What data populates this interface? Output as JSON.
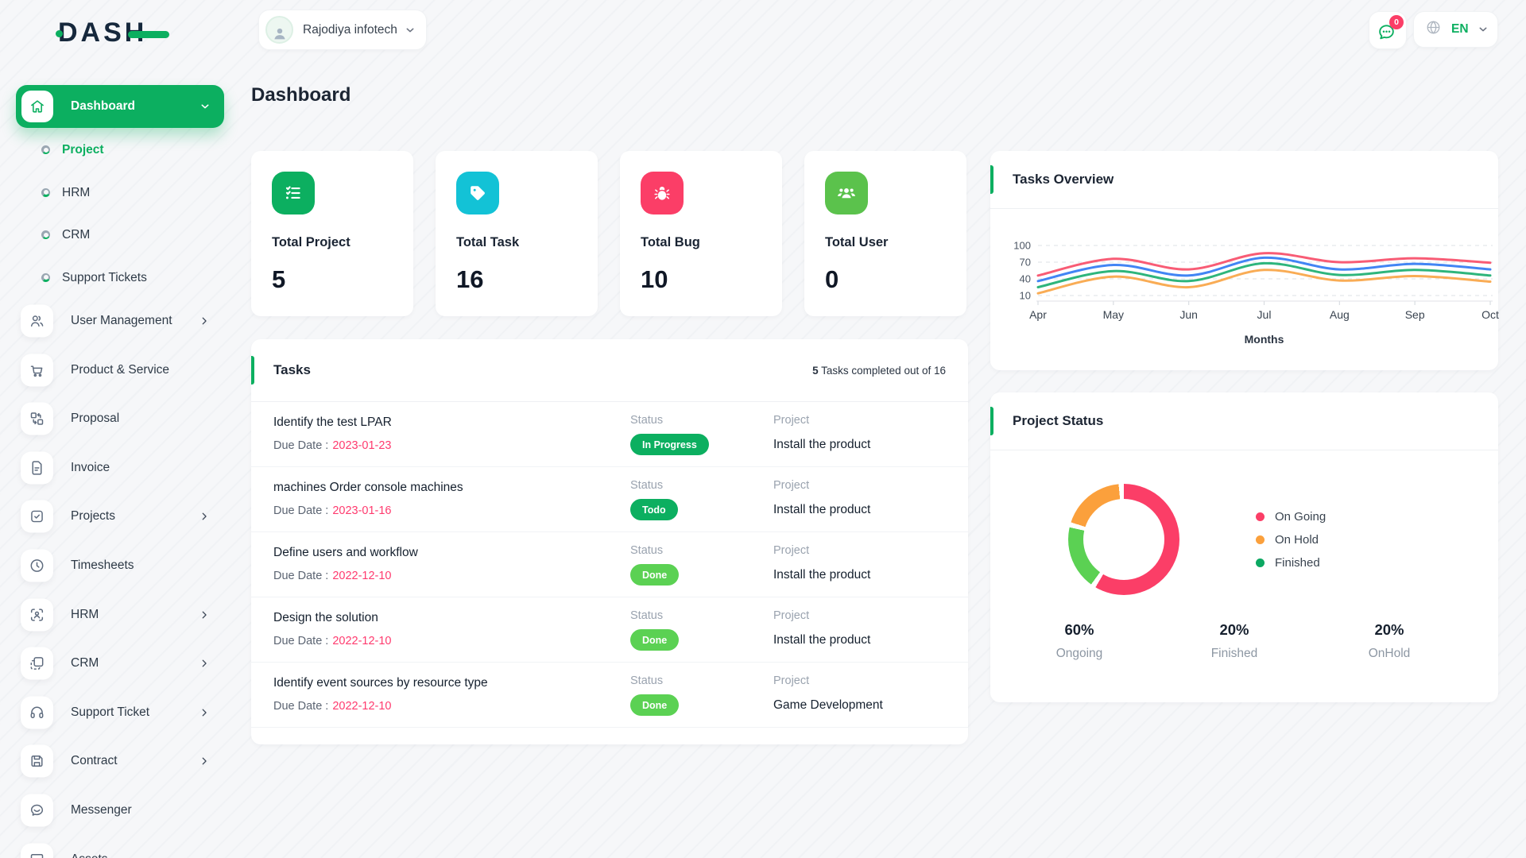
{
  "app": {
    "logo_text": "DASH"
  },
  "header": {
    "company_name": "Rajodiya infotech",
    "chat_badge": "0",
    "language": "EN"
  },
  "sidebar": {
    "dashboard_label": "Dashboard",
    "sub_items": [
      {
        "label": "Project",
        "active": true
      },
      {
        "label": "HRM",
        "active": false
      },
      {
        "label": "CRM",
        "active": false
      },
      {
        "label": "Support Tickets",
        "active": false
      }
    ],
    "items": [
      {
        "label": "User Management",
        "icon": "users",
        "chevron": true
      },
      {
        "label": "Product & Service",
        "icon": "cart",
        "chevron": false
      },
      {
        "label": "Proposal",
        "icon": "proposal",
        "chevron": false
      },
      {
        "label": "Invoice",
        "icon": "invoice",
        "chevron": false
      },
      {
        "label": "Projects",
        "icon": "projects",
        "chevron": true
      },
      {
        "label": "Timesheets",
        "icon": "clock",
        "chevron": false
      },
      {
        "label": "HRM",
        "icon": "hrm",
        "chevron": true
      },
      {
        "label": "CRM",
        "icon": "crm",
        "chevron": true
      },
      {
        "label": "Support Ticket",
        "icon": "headset",
        "chevron": true
      },
      {
        "label": "Contract",
        "icon": "contract",
        "chevron": true
      },
      {
        "label": "Messenger",
        "icon": "messenger",
        "chevron": false
      },
      {
        "label": "Assets",
        "icon": "assets",
        "chevron": false
      }
    ]
  },
  "page": {
    "title": "Dashboard"
  },
  "stats": [
    {
      "label": "Total Project",
      "value": "5",
      "icon": "checklist",
      "color": "#0CAF60"
    },
    {
      "label": "Total Task",
      "value": "16",
      "icon": "tag",
      "color": "#13C2D6"
    },
    {
      "label": "Total Bug",
      "value": "10",
      "icon": "bug",
      "color": "#FB3E67"
    },
    {
      "label": "Total User",
      "value": "0",
      "icon": "usersgroup",
      "color": "#5BC24C"
    }
  ],
  "tasks": {
    "title": "Tasks",
    "summary_bold": "5",
    "summary_rest": " Tasks completed out of 16",
    "due_label": "Due Date :",
    "status_label": "Status",
    "project_label": "Project",
    "rows": [
      {
        "name": "Identify the test LPAR",
        "due": "2023-01-23",
        "status": "In Progress",
        "status_color": "#0CAF60",
        "project": "Install the product"
      },
      {
        "name": "machines Order console machines",
        "due": "2023-01-16",
        "status": "Todo",
        "status_color": "#0CAF60",
        "project": "Install the product"
      },
      {
        "name": "Define users and workflow",
        "due": "2022-12-10",
        "status": "Done",
        "status_color": "#5BD153",
        "project": "Install the product"
      },
      {
        "name": "Design the solution",
        "due": "2022-12-10",
        "status": "Done",
        "status_color": "#5BD153",
        "project": "Install the product"
      },
      {
        "name": "Identify event sources by resource type",
        "due": "2022-12-10",
        "status": "Done",
        "status_color": "#5BD153",
        "project": "Game Development"
      }
    ]
  },
  "chart_data": [
    {
      "type": "line",
      "title": "Tasks Overview",
      "x": [
        "Apr",
        "May",
        "Jun",
        "Jul",
        "Aug",
        "Sep",
        "Oct"
      ],
      "xlabel": "Months",
      "yticks": [
        10,
        40,
        70,
        100
      ],
      "ylim": [
        10,
        100
      ],
      "grid": true,
      "legend_position": "none",
      "series": [
        {
          "color": "#F85C75",
          "values": [
            46,
            76,
            57,
            86,
            70,
            77,
            69
          ]
        },
        {
          "color": "#4285F4",
          "values": [
            36,
            65,
            46,
            78,
            57,
            67,
            57
          ]
        },
        {
          "color": "#2EB57C",
          "values": [
            25,
            54,
            36,
            68,
            47,
            56,
            46
          ]
        },
        {
          "color": "#F9AC55",
          "values": [
            14,
            44,
            25,
            56,
            37,
            45,
            35
          ]
        }
      ]
    },
    {
      "type": "pie",
      "title": "Project Status",
      "slices": [
        {
          "label": "On Going",
          "value": 60,
          "color": "#FB3E67"
        },
        {
          "label": "Finished",
          "value": 20,
          "color": "#5BD153"
        },
        {
          "label": "On Hold",
          "value": 20,
          "color": "#FBA03C"
        }
      ],
      "legend": [
        {
          "label": "On Going",
          "color": "#FB3E67"
        },
        {
          "label": "On Hold",
          "color": "#FBA03C"
        },
        {
          "label": "Finished",
          "color": "#0CA862"
        }
      ],
      "stats": [
        {
          "pct": "60%",
          "label": "Ongoing"
        },
        {
          "pct": "20%",
          "label": "Finished"
        },
        {
          "pct": "20%",
          "label": "OnHold"
        }
      ]
    }
  ]
}
